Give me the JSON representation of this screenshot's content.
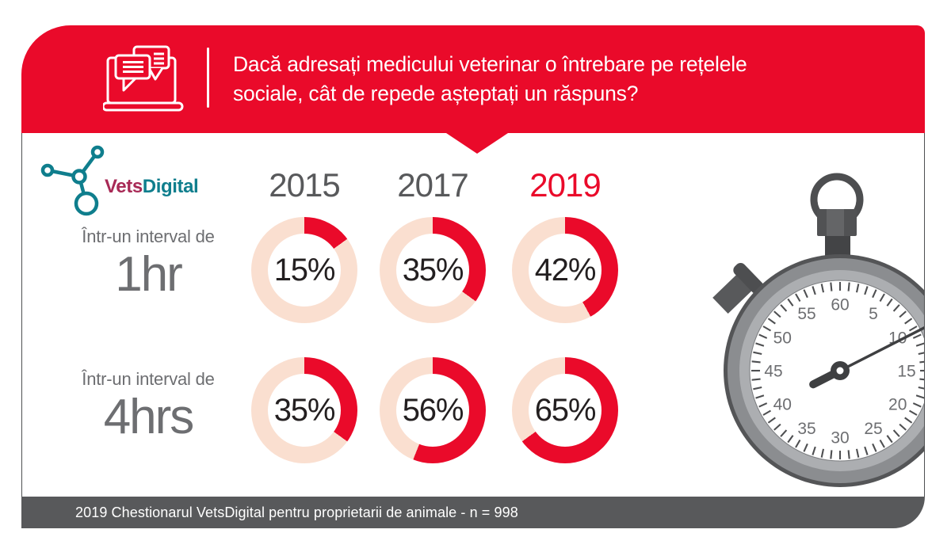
{
  "header": {
    "question_lines": [
      "Dacă adresați medicului veterinar o întrebare pe rețelele",
      "sociale, cât de repede așteptați un răspuns?"
    ]
  },
  "logo": {
    "vets": "Vets",
    "digital": "Digital"
  },
  "rows": [
    {
      "prefix": "Într-un interval de",
      "time": "1hr"
    },
    {
      "prefix": "Într-un interval de",
      "time": "4hrs"
    }
  ],
  "chart_data": {
    "type": "pie",
    "subtype": "donut-multiples",
    "title": "Dacă adresați medicului veterinar o întrebare pe rețelele sociale, cât de repede așteptați un răspuns?",
    "categories": [
      "2015",
      "2017",
      "2019"
    ],
    "series": [
      {
        "name": "Într-un interval de 1hr",
        "values": [
          15,
          35,
          42
        ]
      },
      {
        "name": "Într-un interval de 4hrs",
        "values": [
          35,
          56,
          65
        ]
      }
    ],
    "unit": "%",
    "legend_position": "none",
    "source": "2019 Chestionarul VetsDigital pentru proprietarii de animale - n = 998"
  },
  "stopwatch": {
    "dial_numbers": [
      "60",
      "5",
      "10",
      "15",
      "20",
      "25",
      "30",
      "35",
      "40",
      "45",
      "50",
      "55"
    ],
    "hand_value": 10.5
  },
  "footer": {
    "source_note": "2019 Chestionarul VetsDigital pentru proprietarii de animale - n = 998"
  },
  "icons": {
    "header": "laptop-chat-icon",
    "logo": "network-nodes-icon",
    "illustration": "stopwatch-icon"
  },
  "colors": {
    "accent_red": "#EA0A2A",
    "donut_track": "#FADFD0",
    "footer_gray": "#58595B",
    "text_gray": "#6D6E71",
    "year_gray": "#58595B",
    "pct_dark": "#231F20",
    "logo_teal": "#0F7E8D",
    "logo_magenta": "#A82A56"
  }
}
